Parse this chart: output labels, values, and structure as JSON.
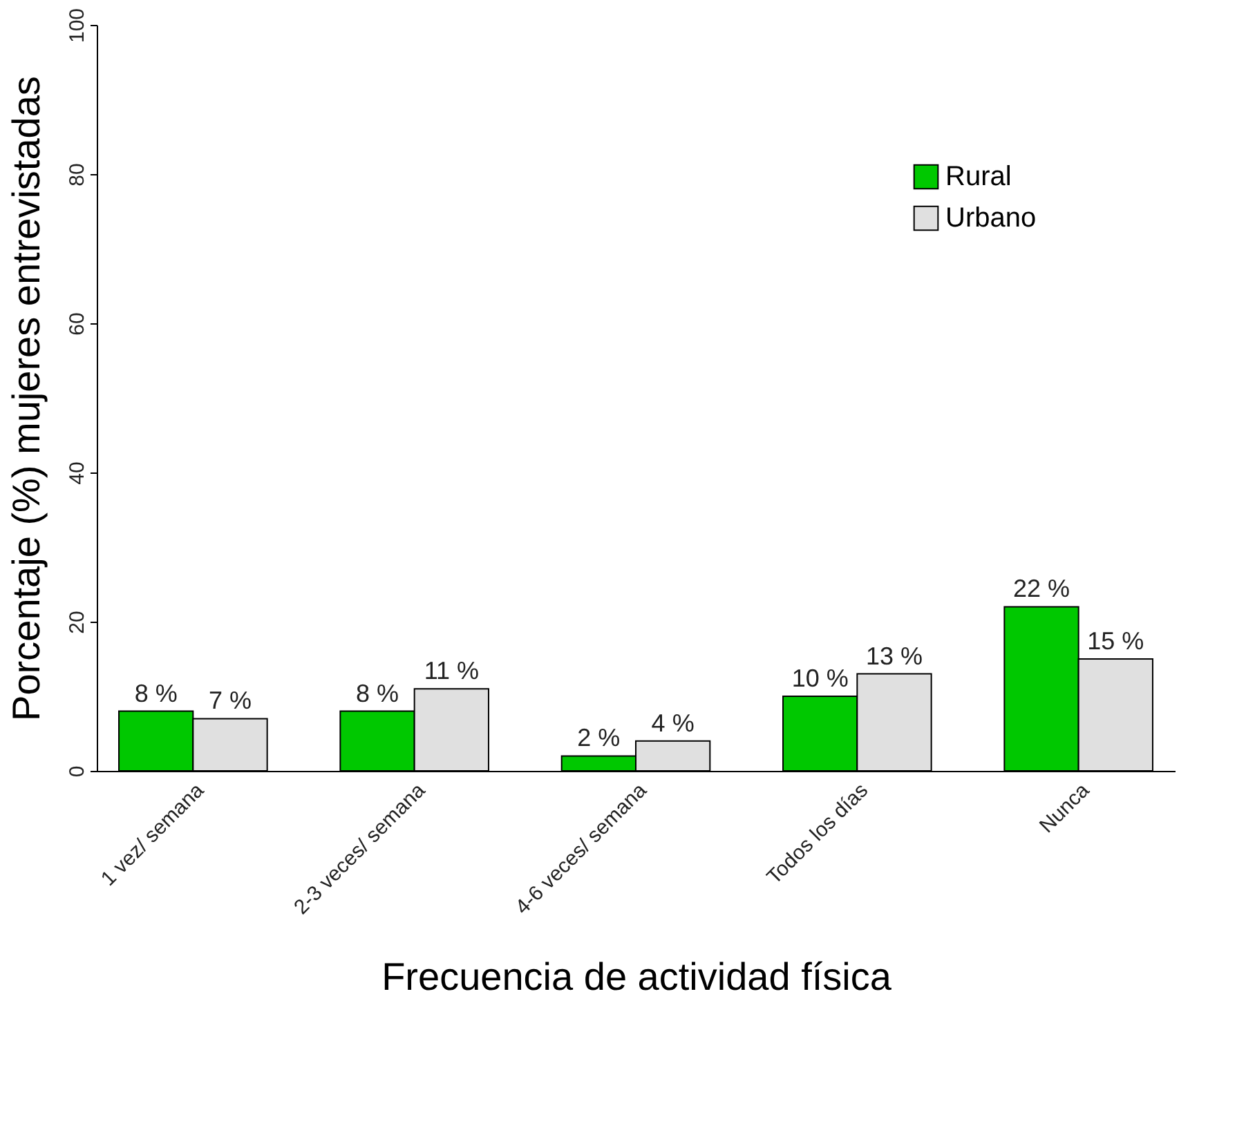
{
  "chart_data": {
    "type": "bar",
    "xlabel": "Frecuencia de actividad física",
    "ylabel": "Porcentaje (%)  mujeres entrevistadas",
    "categories": [
      "1 vez/ semana",
      "2-3 veces/ semana",
      "4-6 veces/ semana",
      "Todos los días",
      "Nunca"
    ],
    "series": [
      {
        "name": "Rural",
        "color": "#00c800",
        "values": [
          8,
          8,
          2,
          10,
          22
        ],
        "value_labels": [
          "8 %",
          "8 %",
          "2 %",
          "10 %",
          "22 %"
        ]
      },
      {
        "name": "Urbano",
        "color": "#e0e0e0",
        "values": [
          7,
          11,
          4,
          13,
          15
        ],
        "value_labels": [
          "7 %",
          "11 %",
          "4 %",
          "13 %",
          "15 %"
        ]
      }
    ],
    "ylim": [
      0,
      100
    ],
    "yticks": [
      0,
      20,
      40,
      60,
      80,
      100
    ],
    "grid": false,
    "legend": "top right"
  }
}
